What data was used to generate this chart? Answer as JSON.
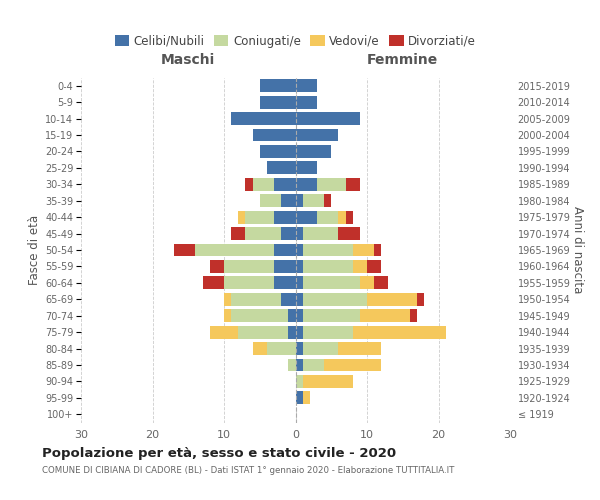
{
  "age_groups": [
    "100+",
    "95-99",
    "90-94",
    "85-89",
    "80-84",
    "75-79",
    "70-74",
    "65-69",
    "60-64",
    "55-59",
    "50-54",
    "45-49",
    "40-44",
    "35-39",
    "30-34",
    "25-29",
    "20-24",
    "15-19",
    "10-14",
    "5-9",
    "0-4"
  ],
  "birth_years": [
    "≤ 1919",
    "1920-1924",
    "1925-1929",
    "1930-1934",
    "1935-1939",
    "1940-1944",
    "1945-1949",
    "1950-1954",
    "1955-1959",
    "1960-1964",
    "1965-1969",
    "1970-1974",
    "1975-1979",
    "1980-1984",
    "1985-1989",
    "1990-1994",
    "1995-1999",
    "2000-2004",
    "2005-2009",
    "2010-2014",
    "2015-2019"
  ],
  "maschi": {
    "celibi": [
      0,
      0,
      0,
      0,
      0,
      1,
      1,
      2,
      3,
      3,
      3,
      2,
      3,
      2,
      3,
      4,
      5,
      6,
      9,
      5,
      5
    ],
    "coniugati": [
      0,
      0,
      0,
      1,
      4,
      7,
      8,
      7,
      7,
      7,
      11,
      5,
      4,
      3,
      3,
      0,
      0,
      0,
      0,
      0,
      0
    ],
    "vedovi": [
      0,
      0,
      0,
      0,
      2,
      4,
      1,
      1,
      0,
      0,
      0,
      0,
      1,
      0,
      0,
      0,
      0,
      0,
      0,
      0,
      0
    ],
    "divorziati": [
      0,
      0,
      0,
      0,
      0,
      0,
      0,
      0,
      3,
      2,
      3,
      2,
      0,
      0,
      1,
      0,
      0,
      0,
      0,
      0,
      0
    ]
  },
  "femmine": {
    "celibi": [
      0,
      1,
      0,
      1,
      1,
      1,
      1,
      1,
      1,
      1,
      1,
      1,
      3,
      1,
      3,
      3,
      5,
      6,
      9,
      3,
      3
    ],
    "coniugati": [
      0,
      0,
      1,
      3,
      5,
      7,
      8,
      9,
      8,
      7,
      7,
      5,
      3,
      3,
      4,
      0,
      0,
      0,
      0,
      0,
      0
    ],
    "vedovi": [
      0,
      1,
      7,
      8,
      6,
      13,
      7,
      7,
      2,
      2,
      3,
      0,
      1,
      0,
      0,
      0,
      0,
      0,
      0,
      0,
      0
    ],
    "divorziati": [
      0,
      0,
      0,
      0,
      0,
      0,
      1,
      1,
      2,
      2,
      1,
      3,
      1,
      1,
      2,
      0,
      0,
      0,
      0,
      0,
      0
    ]
  },
  "color_celibi": "#4472a8",
  "color_coniugati": "#c5d9a0",
  "color_vedovi": "#f5c85c",
  "color_divorziati": "#c0302a",
  "xlim": 30,
  "title": "Popolazione per età, sesso e stato civile - 2020",
  "subtitle": "COMUNE DI CIBIANA DI CADORE (BL) - Dati ISTAT 1° gennaio 2020 - Elaborazione TUTTITALIA.IT",
  "ylabel_left": "Fasce di età",
  "ylabel_right": "Anni di nascita",
  "xlabel_maschi": "Maschi",
  "xlabel_femmine": "Femmine"
}
